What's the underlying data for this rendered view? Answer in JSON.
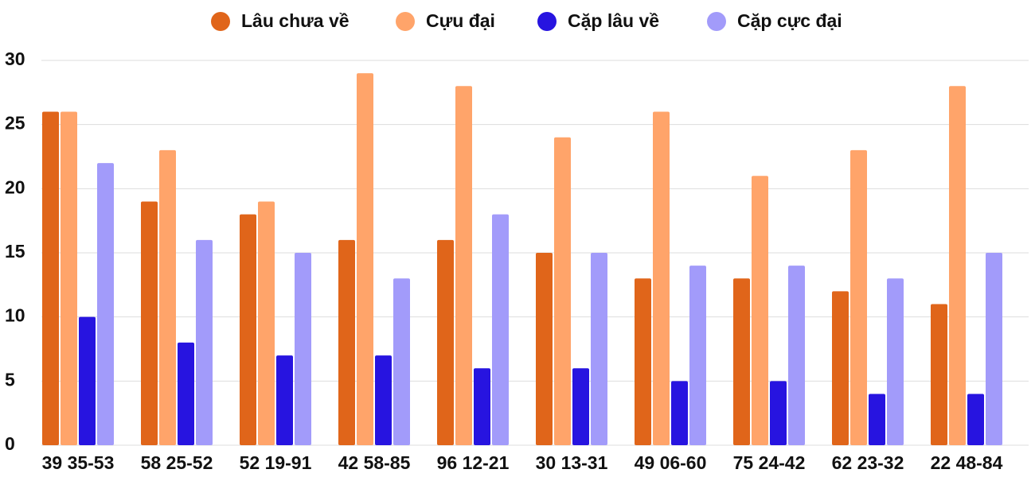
{
  "chart_data": {
    "type": "bar",
    "categories": [
      "39 35-53",
      "58 25-52",
      "52 19-91",
      "42 58-85",
      "96 12-21",
      "30 13-31",
      "49 06-60",
      "75 24-42",
      "62 23-32",
      "22 48-84"
    ],
    "series": [
      {
        "name": "Lâu chưa về",
        "color": "#e0651a",
        "values": [
          26,
          19,
          18,
          16,
          16,
          15,
          13,
          13,
          12,
          11
        ]
      },
      {
        "name": "Cựu đại",
        "color": "#ffa46a",
        "values": [
          26,
          23,
          19,
          29,
          28,
          24,
          26,
          21,
          23,
          28
        ]
      },
      {
        "name": "Cặp lâu về",
        "color": "#2714e0",
        "values": [
          10,
          8,
          7,
          7,
          6,
          6,
          5,
          5,
          4,
          4
        ]
      },
      {
        "name": "Cặp cực đại",
        "color": "#a29bfa",
        "values": [
          22,
          16,
          15,
          13,
          18,
          15,
          14,
          14,
          13,
          15
        ]
      }
    ],
    "ylim": [
      0,
      30
    ],
    "yticks": [
      0,
      5,
      10,
      15,
      20,
      25,
      30
    ],
    "grid": true,
    "legend": "top"
  }
}
